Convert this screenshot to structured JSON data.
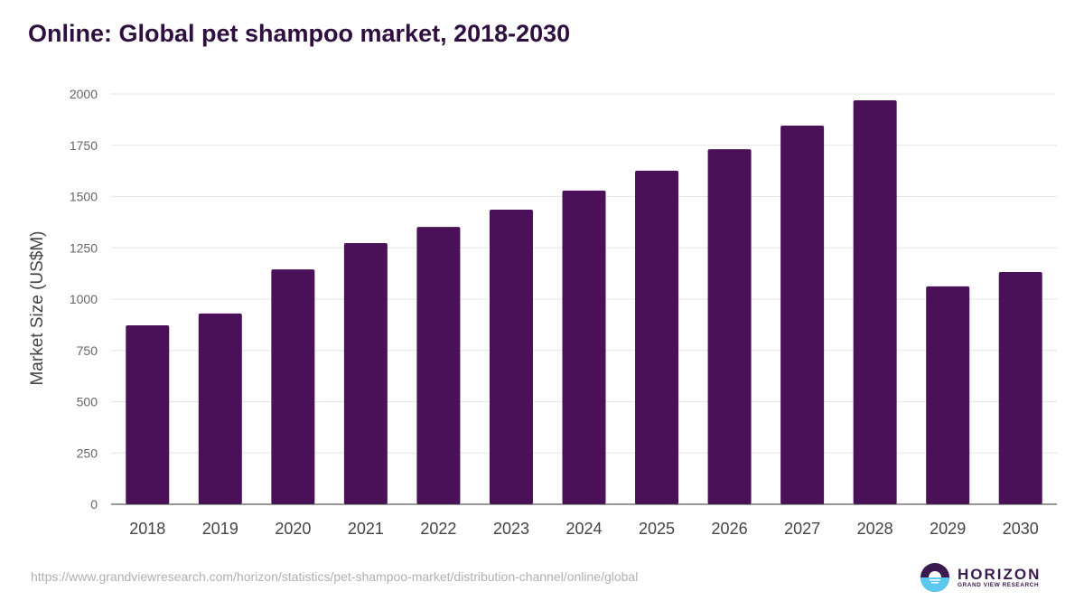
{
  "title": "Online: Global pet shampoo market, 2018-2030",
  "source": "https://www.grandviewresearch.com/horizon/statistics/pet-shampoo-market/distribution-channel/online/global",
  "logo": {
    "name": "HORIZON",
    "subtitle": "GRAND VIEW RESEARCH"
  },
  "colors": {
    "bar": "#4b1158",
    "title": "#2e0f3f",
    "grid": "#e6e6e6"
  },
  "chart_data": {
    "type": "bar",
    "title": "Online: Global pet shampoo market, 2018-2030",
    "xlabel": "",
    "ylabel": "Market Size (US$M)",
    "ylim": [
      0,
      2000
    ],
    "yticks": [
      0,
      250,
      500,
      750,
      1000,
      1250,
      1500,
      1750,
      2000
    ],
    "grid": true,
    "categories": [
      "2018",
      "2019",
      "2020",
      "2021",
      "2022",
      "2023",
      "2024",
      "2025",
      "2026",
      "2027",
      "2028",
      "2029",
      "2030"
    ],
    "values": [
      872,
      930,
      1145,
      1273,
      1352,
      1436,
      1529,
      1626,
      1731,
      1846,
      1969,
      1062,
      1132
    ]
  }
}
